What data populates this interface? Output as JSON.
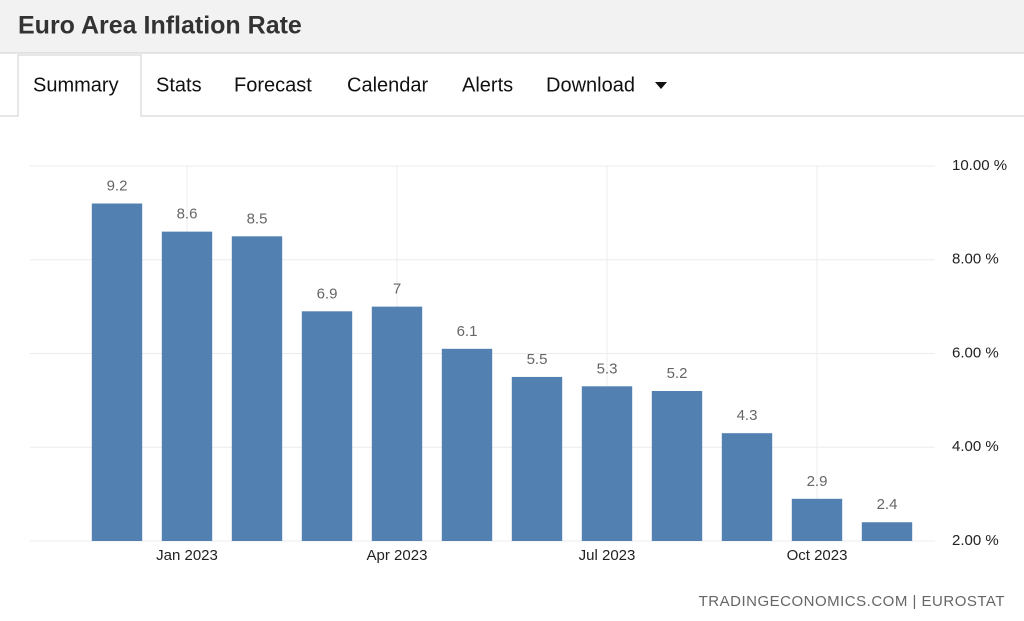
{
  "header": {
    "title": "Euro Area Inflation Rate"
  },
  "tabs": [
    "Summary",
    "Stats",
    "Forecast",
    "Calendar",
    "Alerts",
    "Download"
  ],
  "chart_data": {
    "type": "bar",
    "categories": [
      null,
      "Jan 2023",
      null,
      null,
      "Apr 2023",
      null,
      null,
      "Jul 2023",
      null,
      null,
      "Oct 2023",
      null
    ],
    "values": [
      9.2,
      8.6,
      8.5,
      6.9,
      7,
      6.1,
      5.5,
      5.3,
      5.2,
      4.3,
      2.9,
      2.4
    ],
    "color": "#5281b1",
    "ylim": [
      2,
      10
    ],
    "yticks": [
      {
        "value": 2,
        "label": "2.00 %"
      },
      {
        "value": 4,
        "label": "4.00 %"
      },
      {
        "value": 6,
        "label": "6.00 %"
      },
      {
        "value": 8,
        "label": "8.00 %"
      },
      {
        "value": 10,
        "label": "10.00 %"
      }
    ],
    "grid": true,
    "source": "TRADINGECONOMICS.COM | EUROSTAT"
  }
}
